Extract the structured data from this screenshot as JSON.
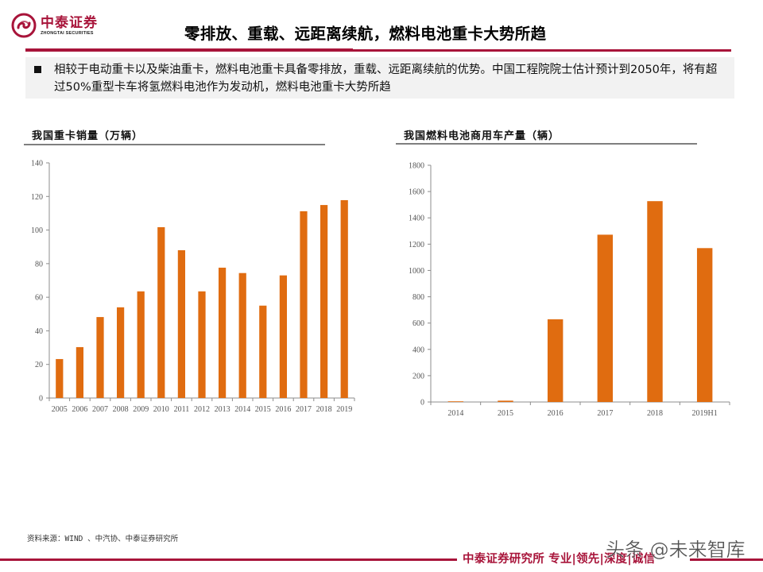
{
  "header": {
    "logo_cn": "中泰证券",
    "logo_en": "ZHONGTAI SECURITIES",
    "title": "零排放、重载、远距离续航，燃料电池重卡大势所趋"
  },
  "summary": {
    "text": "相较于电动重卡以及柴油重卡，燃料电池重卡具备零排放，重载、远距离续航的优势。中国工程院院士估计预计到2050年，将有超过50%重型卡车将氢燃料电池作为发动机，燃料电池重卡大势所趋"
  },
  "colors": {
    "brand": "#a8143a",
    "bar": "#e06c10",
    "axis": "#8c8c8c"
  },
  "chart_data": [
    {
      "type": "bar",
      "title": "我国重卡销量（万辆）",
      "xlabel": "",
      "ylabel": "",
      "categories": [
        "2005",
        "2006",
        "2007",
        "2008",
        "2009",
        "2010",
        "2011",
        "2012",
        "2013",
        "2014",
        "2015",
        "2016",
        "2017",
        "2018",
        "2019"
      ],
      "values": [
        23.2,
        30.3,
        48.2,
        54.0,
        63.5,
        101.7,
        88.0,
        63.5,
        77.6,
        74.4,
        55.0,
        73.0,
        111.2,
        114.9,
        117.8
      ],
      "ylim": [
        0,
        140
      ],
      "yticks": [
        0,
        20,
        40,
        60,
        80,
        100,
        120,
        140
      ],
      "grid": false,
      "legend": null
    },
    {
      "type": "bar",
      "title": "我国燃料电池商用车产量（辆）",
      "xlabel": "",
      "ylabel": "",
      "categories": [
        "2014",
        "2015",
        "2016",
        "2017",
        "2018",
        "2019H1"
      ],
      "values": [
        5,
        10,
        629,
        1272,
        1527,
        1170
      ],
      "ylim": [
        0,
        1800
      ],
      "yticks": [
        0,
        200,
        400,
        600,
        800,
        1000,
        1200,
        1400,
        1600,
        1800
      ],
      "grid": false,
      "legend": null
    }
  ],
  "source": "资料来源：WIND 、中汽协、中泰证券研究所",
  "footer": {
    "text": "中泰证券研究所 专业|领先|深度|诚信",
    "watermark": "头条 @未来智库"
  }
}
